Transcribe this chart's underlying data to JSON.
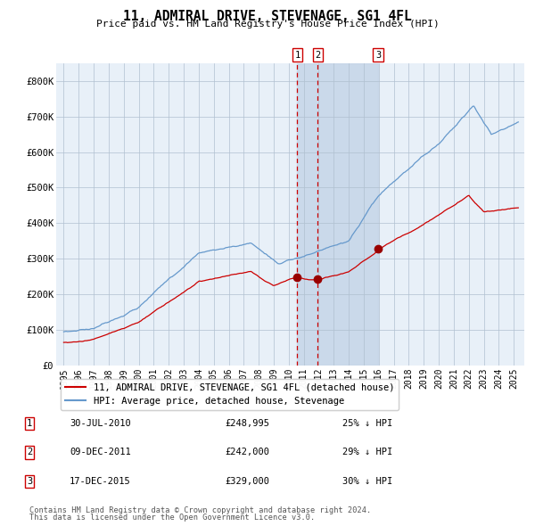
{
  "title": "11, ADMIRAL DRIVE, STEVENAGE, SG1 4FL",
  "subtitle": "Price paid vs. HM Land Registry's House Price Index (HPI)",
  "legend_red": "11, ADMIRAL DRIVE, STEVENAGE, SG1 4FL (detached house)",
  "legend_blue": "HPI: Average price, detached house, Stevenage",
  "footer1": "Contains HM Land Registry data © Crown copyright and database right 2024.",
  "footer2": "This data is licensed under the Open Government Licence v3.0.",
  "transactions": [
    {
      "num": 1,
      "date": "30-JUL-2010",
      "price": "£248,995",
      "pct": "25% ↓ HPI",
      "x_year": 2010.57
    },
    {
      "num": 2,
      "date": "09-DEC-2011",
      "price": "£242,000",
      "pct": "29% ↓ HPI",
      "x_year": 2011.94
    },
    {
      "num": 3,
      "date": "17-DEC-2015",
      "price": "£329,000",
      "pct": "30% ↓ HPI",
      "x_year": 2015.96
    }
  ],
  "sale_prices": [
    248995,
    242000,
    329000
  ],
  "red_color": "#cc0000",
  "blue_color": "#6699cc",
  "plot_bg": "#e8f0f8",
  "shaded_color": "#c5d5e8",
  "grid_color": "#b0c0d0",
  "ylim": [
    0,
    850000
  ],
  "xlim_start": 1994.5,
  "xlim_end": 2025.7,
  "yticks": [
    0,
    100000,
    200000,
    300000,
    400000,
    500000,
    600000,
    700000,
    800000
  ],
  "ylabels": [
    "£0",
    "£100K",
    "£200K",
    "£300K",
    "£400K",
    "£500K",
    "£600K",
    "£700K",
    "£800K"
  ],
  "xticks": [
    1995,
    1996,
    1997,
    1998,
    1999,
    2000,
    2001,
    2002,
    2003,
    2004,
    2005,
    2006,
    2007,
    2008,
    2009,
    2010,
    2011,
    2012,
    2013,
    2014,
    2015,
    2016,
    2017,
    2018,
    2019,
    2020,
    2021,
    2022,
    2023,
    2024,
    2025
  ]
}
